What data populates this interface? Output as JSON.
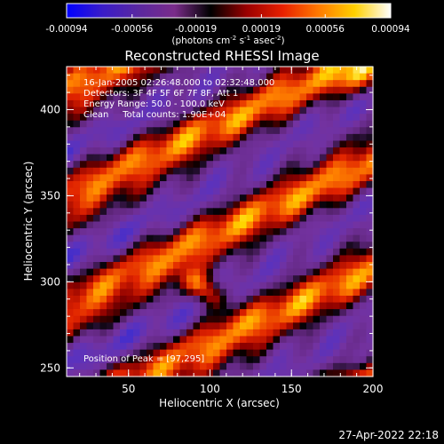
{
  "chart_data": {
    "type": "heatmap",
    "title": "Reconstructed RHESSI Image",
    "xlabel": "Heliocentric X (arcsec)",
    "ylabel": "Heliocentric Y (arcsec)",
    "xlim": [
      12,
      200
    ],
    "ylim": [
      245,
      425
    ],
    "x_ticks": [
      50,
      100,
      150,
      200
    ],
    "y_ticks": [
      250,
      300,
      350,
      400
    ],
    "colorbar": {
      "ticks": [
        "-0.00094",
        "-0.00056",
        "-0.00019",
        "0.00019",
        "0.00056",
        "0.00094"
      ],
      "range": [
        -0.00094,
        0.00094
      ],
      "label_parts": [
        "(photons cm",
        "-2",
        " s",
        "-1",
        " asec",
        "-2",
        ")"
      ],
      "colormap": [
        "#0000ff",
        "#3a1cc8",
        "#5a28a0",
        "#7a2c8a",
        "#000000",
        "#9a0000",
        "#e82000",
        "#ff7a00",
        "#ffd000",
        "#ffffff"
      ]
    },
    "annotations": [
      "16-Jan-2005 02:26:48.000 to 02:32:48.000",
      "Detectors: 3F 4F 5F 6F 7F 8F, Att 1",
      "Energy Range: 50.0 - 100.0 keV",
      "Clean     Total counts: 1.90E+04"
    ],
    "peak_label": "Position of Peak = [97,295]",
    "peak": {
      "x": 97,
      "y": 295
    },
    "timestamp": "27-Apr-2022 22:18"
  }
}
